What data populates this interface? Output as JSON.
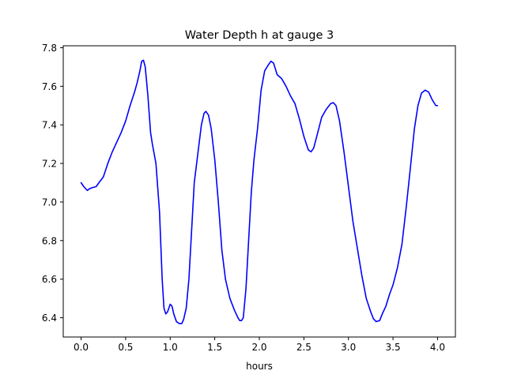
{
  "chart_data": {
    "type": "line",
    "title": "Water Depth h at gauge 3",
    "xlabel": "hours",
    "ylabel": "",
    "xlim": [
      -0.2,
      4.2
    ],
    "ylim": [
      6.3,
      7.81
    ],
    "xticks": [
      0.0,
      0.5,
      1.0,
      1.5,
      2.0,
      2.5,
      3.0,
      3.5,
      4.0
    ],
    "xtick_labels": [
      "0.0",
      "0.5",
      "1.0",
      "1.5",
      "2.0",
      "2.5",
      "3.0",
      "3.5",
      "4.0"
    ],
    "yticks": [
      6.4,
      6.6,
      6.8,
      7.0,
      7.2,
      7.4,
      7.6,
      7.8
    ],
    "ytick_labels": [
      "6.4",
      "6.6",
      "6.8",
      "7.0",
      "7.2",
      "7.4",
      "7.6",
      "7.8"
    ],
    "grid": false,
    "legend": "none",
    "series": [
      {
        "color": "#0000ff",
        "x": [
          0.0,
          0.03,
          0.07,
          0.1,
          0.13,
          0.17,
          0.2,
          0.25,
          0.3,
          0.35,
          0.4,
          0.45,
          0.5,
          0.55,
          0.6,
          0.63,
          0.66,
          0.68,
          0.7,
          0.72,
          0.75,
          0.78,
          0.8,
          0.84,
          0.88,
          0.91,
          0.93,
          0.95,
          0.97,
          1.0,
          1.02,
          1.04,
          1.07,
          1.1,
          1.13,
          1.15,
          1.18,
          1.21,
          1.24,
          1.27,
          1.31,
          1.35,
          1.38,
          1.4,
          1.43,
          1.46,
          1.5,
          1.54,
          1.58,
          1.62,
          1.67,
          1.72,
          1.76,
          1.78,
          1.8,
          1.82,
          1.85,
          1.88,
          1.91,
          1.94,
          1.98,
          2.02,
          2.06,
          2.1,
          2.13,
          2.16,
          2.2,
          2.25,
          2.3,
          2.35,
          2.4,
          2.45,
          2.5,
          2.55,
          2.58,
          2.61,
          2.65,
          2.7,
          2.75,
          2.8,
          2.83,
          2.86,
          2.9,
          2.95,
          3.0,
          3.05,
          3.1,
          3.15,
          3.2,
          3.25,
          3.28,
          3.31,
          3.35,
          3.38,
          3.42,
          3.46,
          3.5,
          3.55,
          3.6,
          3.65,
          3.7,
          3.74,
          3.78,
          3.82,
          3.86,
          3.9,
          3.94,
          3.98,
          4.0
        ],
        "y": [
          7.1,
          7.08,
          7.06,
          7.07,
          7.075,
          7.08,
          7.1,
          7.13,
          7.2,
          7.26,
          7.31,
          7.36,
          7.42,
          7.5,
          7.57,
          7.62,
          7.68,
          7.73,
          7.735,
          7.7,
          7.55,
          7.36,
          7.3,
          7.2,
          6.95,
          6.6,
          6.45,
          6.42,
          6.43,
          6.47,
          6.46,
          6.42,
          6.38,
          6.37,
          6.37,
          6.39,
          6.45,
          6.6,
          6.85,
          7.1,
          7.25,
          7.4,
          7.46,
          7.47,
          7.45,
          7.38,
          7.22,
          7.0,
          6.75,
          6.6,
          6.5,
          6.44,
          6.4,
          6.385,
          6.385,
          6.4,
          6.55,
          6.8,
          7.05,
          7.22,
          7.38,
          7.58,
          7.68,
          7.71,
          7.73,
          7.72,
          7.66,
          7.64,
          7.6,
          7.55,
          7.51,
          7.43,
          7.34,
          7.27,
          7.26,
          7.28,
          7.35,
          7.44,
          7.48,
          7.51,
          7.515,
          7.5,
          7.42,
          7.26,
          7.08,
          6.9,
          6.76,
          6.62,
          6.5,
          6.43,
          6.395,
          6.38,
          6.385,
          6.42,
          6.46,
          6.52,
          6.57,
          6.66,
          6.78,
          6.98,
          7.2,
          7.38,
          7.5,
          7.565,
          7.58,
          7.57,
          7.53,
          7.5,
          7.5
        ]
      }
    ]
  }
}
